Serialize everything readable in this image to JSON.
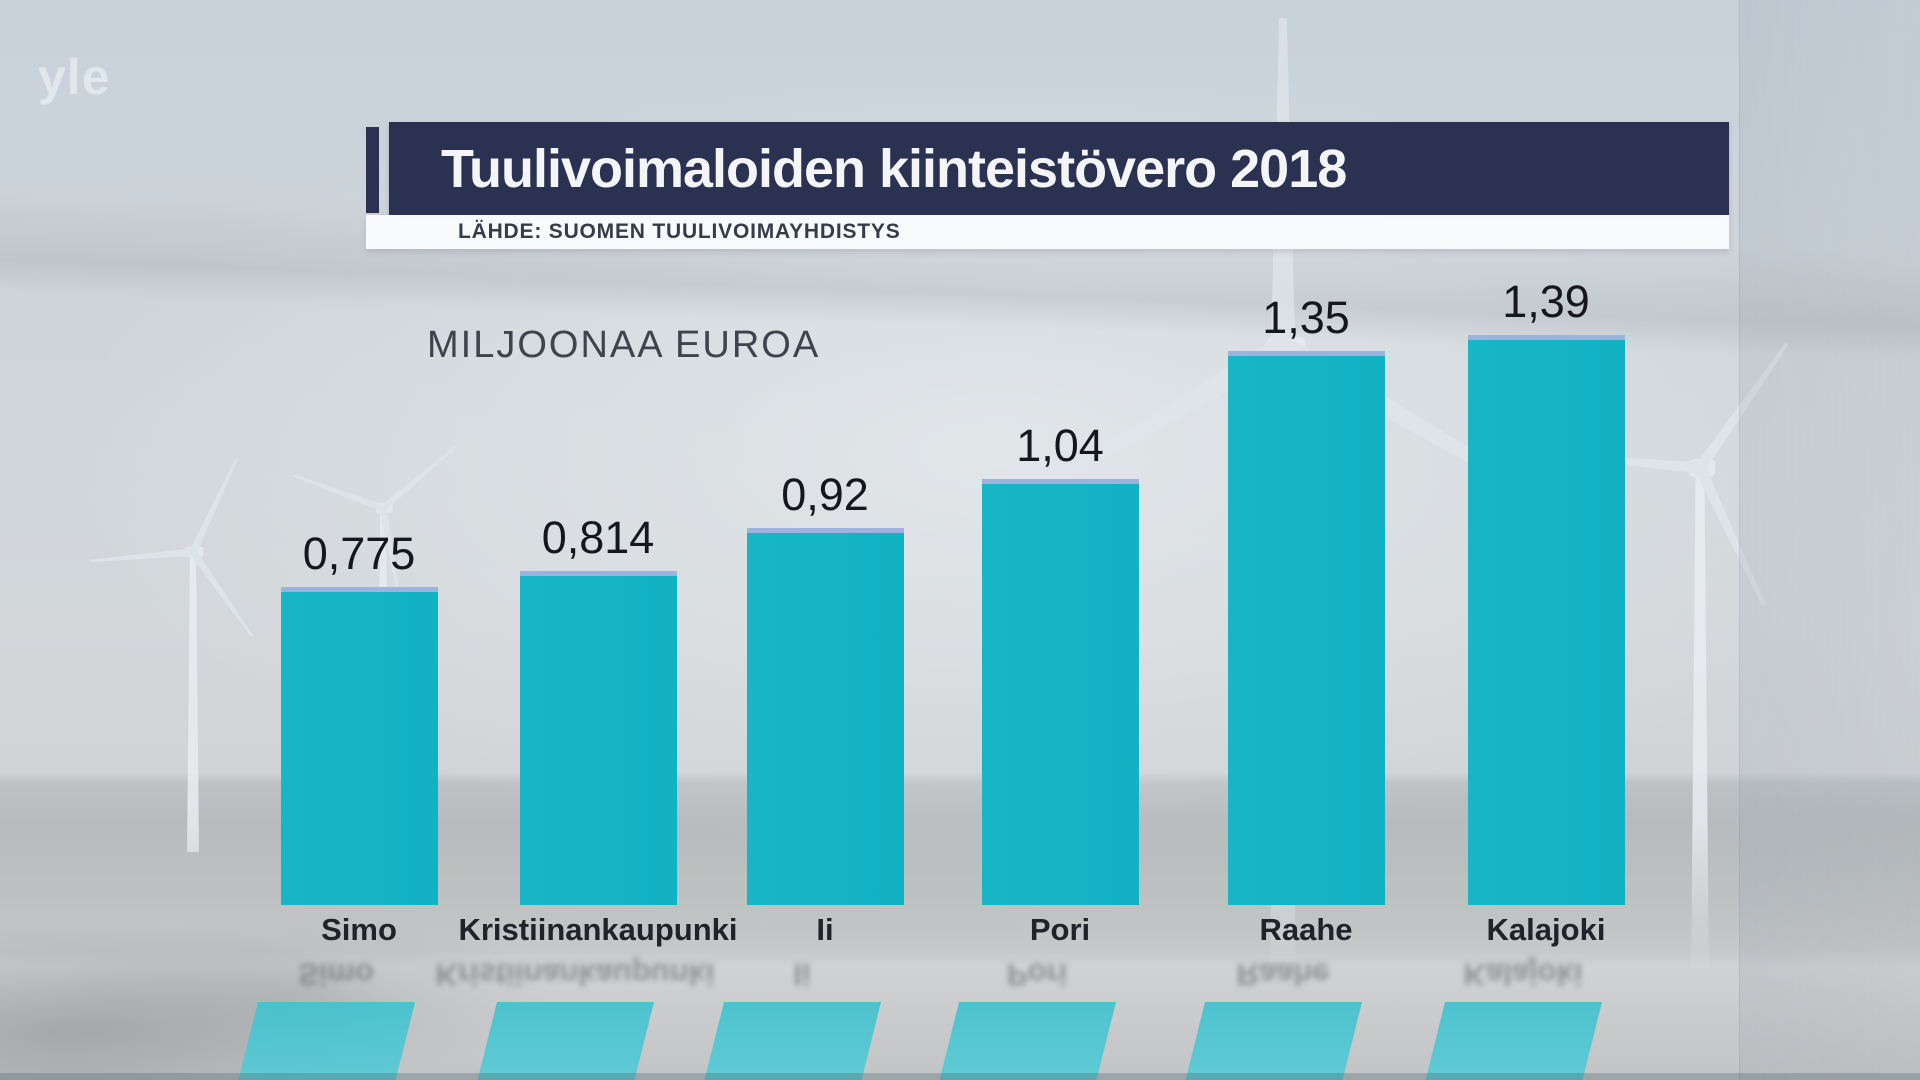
{
  "watermark": {
    "text": "yle"
  },
  "header": {
    "title": "Tuulivoimaloiden kiinteistövero 2018",
    "source": "LÄHDE: SUOMEN TUULIVOIMAYHDISTYS"
  },
  "chart_data": {
    "type": "bar",
    "title": "Tuulivoimaloiden kiinteistövero 2018",
    "source": "LÄHDE: SUOMEN TUULIVOIMAYHDISTYS",
    "unit_label": "MILJOONAA EUROA",
    "categories": [
      "Simo",
      "Kristiinankaupunki",
      "Ii",
      "Pori",
      "Raahe",
      "Kalajoki"
    ],
    "values": [
      0.775,
      0.814,
      0.92,
      1.04,
      1.35,
      1.39
    ],
    "value_labels": [
      "0,775",
      "0,814",
      "0,92",
      "1,04",
      "1,35",
      "1,39"
    ],
    "ylabel": "MILJOONAA EUROA",
    "xlabel": "",
    "ylim": [
      0,
      1.5
    ],
    "grid": false,
    "legend": false
  },
  "colors": {
    "navy": "#2b3251",
    "bar_teal": "#11b2c3",
    "bar_top_edge": "#9db3de",
    "reflection_teal": "#55cbd6"
  }
}
